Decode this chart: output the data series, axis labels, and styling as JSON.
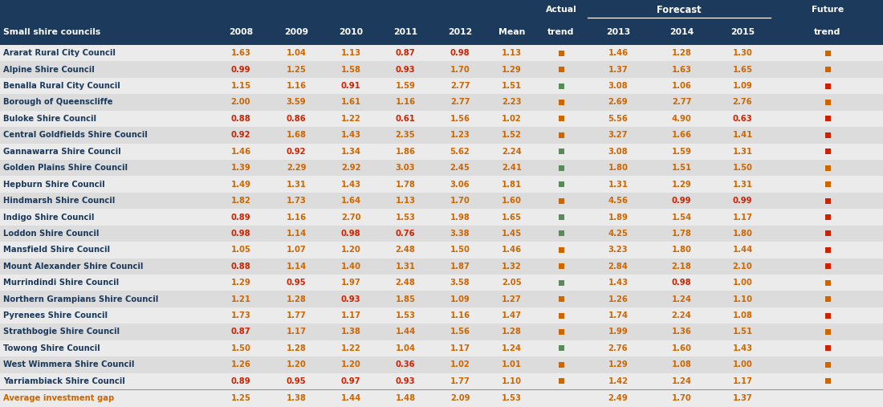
{
  "header_bg": "#1b3a5c",
  "alt_row_bg": "#dcdcdc",
  "white_row_bg": "#ebebeb",
  "footer_bg": "#ebebeb",
  "rows": [
    {
      "name": "Ararat Rural City Council",
      "vals": [
        1.63,
        1.04,
        1.13,
        0.87,
        0.98,
        1.13
      ],
      "actual_sq": "orange",
      "f2013": 1.46,
      "f2014": 1.28,
      "f2015": 1.3,
      "future_sq": "orange"
    },
    {
      "name": "Alpine Shire Council",
      "vals": [
        0.99,
        1.25,
        1.58,
        0.93,
        1.7,
        1.29
      ],
      "actual_sq": "orange",
      "f2013": 1.37,
      "f2014": 1.63,
      "f2015": 1.65,
      "future_sq": "orange"
    },
    {
      "name": "Benalla Rural City Council",
      "vals": [
        1.15,
        1.16,
        0.91,
        1.59,
        2.77,
        1.51
      ],
      "actual_sq": "green",
      "f2013": 3.08,
      "f2014": 1.06,
      "f2015": 1.09,
      "future_sq": "red"
    },
    {
      "name": "Borough of Queenscliffe",
      "vals": [
        2.0,
        3.59,
        1.61,
        1.16,
        2.77,
        2.23
      ],
      "actual_sq": "orange",
      "f2013": 2.69,
      "f2014": 2.77,
      "f2015": 2.76,
      "future_sq": "orange"
    },
    {
      "name": "Buloke Shire Council",
      "vals": [
        0.88,
        0.86,
        1.22,
        0.61,
        1.56,
        1.02
      ],
      "actual_sq": "orange",
      "f2013": 5.56,
      "f2014": 4.9,
      "f2015": 0.63,
      "future_sq": "red"
    },
    {
      "name": "Central Goldfields Shire Council",
      "vals": [
        0.92,
        1.68,
        1.43,
        2.35,
        1.23,
        1.52
      ],
      "actual_sq": "orange",
      "f2013": 3.27,
      "f2014": 1.66,
      "f2015": 1.41,
      "future_sq": "red"
    },
    {
      "name": "Gannawarra Shire Council",
      "vals": [
        1.46,
        0.92,
        1.34,
        1.86,
        5.62,
        2.24
      ],
      "actual_sq": "green",
      "f2013": 3.08,
      "f2014": 1.59,
      "f2015": 1.31,
      "future_sq": "red"
    },
    {
      "name": "Golden Plains Shire Council",
      "vals": [
        1.39,
        2.29,
        2.92,
        3.03,
        2.45,
        2.41
      ],
      "actual_sq": "green",
      "f2013": 1.8,
      "f2014": 1.51,
      "f2015": 1.5,
      "future_sq": "orange"
    },
    {
      "name": "Hepburn Shire Council",
      "vals": [
        1.49,
        1.31,
        1.43,
        1.78,
        3.06,
        1.81
      ],
      "actual_sq": "green",
      "f2013": 1.31,
      "f2014": 1.29,
      "f2015": 1.31,
      "future_sq": "orange"
    },
    {
      "name": "Hindmarsh Shire Council",
      "vals": [
        1.82,
        1.73,
        1.64,
        1.13,
        1.7,
        1.6
      ],
      "actual_sq": "orange",
      "f2013": 4.56,
      "f2014": 0.99,
      "f2015": 0.99,
      "future_sq": "red"
    },
    {
      "name": "Indigo Shire Council",
      "vals": [
        0.89,
        1.16,
        2.7,
        1.53,
        1.98,
        1.65
      ],
      "actual_sq": "green",
      "f2013": 1.89,
      "f2014": 1.54,
      "f2015": 1.17,
      "future_sq": "red"
    },
    {
      "name": "Loddon Shire Council",
      "vals": [
        0.98,
        1.14,
        0.98,
        0.76,
        3.38,
        1.45
      ],
      "actual_sq": "green",
      "f2013": 4.25,
      "f2014": 1.78,
      "f2015": 1.8,
      "future_sq": "red"
    },
    {
      "name": "Mansfield Shire Council",
      "vals": [
        1.05,
        1.07,
        1.2,
        2.48,
        1.5,
        1.46
      ],
      "actual_sq": "orange",
      "f2013": 3.23,
      "f2014": 1.8,
      "f2015": 1.44,
      "future_sq": "red"
    },
    {
      "name": "Mount Alexander Shire Council",
      "vals": [
        0.88,
        1.14,
        1.4,
        1.31,
        1.87,
        1.32
      ],
      "actual_sq": "orange",
      "f2013": 2.84,
      "f2014": 2.18,
      "f2015": 2.1,
      "future_sq": "red"
    },
    {
      "name": "Murrindindi Shire Council",
      "vals": [
        1.29,
        0.95,
        1.97,
        2.48,
        3.58,
        2.05
      ],
      "actual_sq": "green",
      "f2013": 1.43,
      "f2014": 0.98,
      "f2015": 1.0,
      "future_sq": "orange"
    },
    {
      "name": "Northern Grampians Shire Council",
      "vals": [
        1.21,
        1.28,
        0.93,
        1.85,
        1.09,
        1.27
      ],
      "actual_sq": "orange",
      "f2013": 1.26,
      "f2014": 1.24,
      "f2015": 1.1,
      "future_sq": "orange"
    },
    {
      "name": "Pyrenees Shire Council",
      "vals": [
        1.73,
        1.77,
        1.17,
        1.53,
        1.16,
        1.47
      ],
      "actual_sq": "orange",
      "f2013": 1.74,
      "f2014": 2.24,
      "f2015": 1.08,
      "future_sq": "red"
    },
    {
      "name": "Strathbogie Shire Council",
      "vals": [
        0.87,
        1.17,
        1.38,
        1.44,
        1.56,
        1.28
      ],
      "actual_sq": "orange",
      "f2013": 1.99,
      "f2014": 1.36,
      "f2015": 1.51,
      "future_sq": "orange"
    },
    {
      "name": "Towong Shire Council",
      "vals": [
        1.5,
        1.28,
        1.22,
        1.04,
        1.17,
        1.24
      ],
      "actual_sq": "green",
      "f2013": 2.76,
      "f2014": 1.6,
      "f2015": 1.43,
      "future_sq": "red"
    },
    {
      "name": "West Wimmera Shire Council",
      "vals": [
        1.26,
        1.2,
        1.2,
        0.36,
        1.02,
        1.01
      ],
      "actual_sq": "orange",
      "f2013": 1.29,
      "f2014": 1.08,
      "f2015": 1.0,
      "future_sq": "orange"
    },
    {
      "name": "Yarriambiack Shire Council",
      "vals": [
        0.89,
        0.95,
        0.97,
        0.93,
        1.77,
        1.1
      ],
      "actual_sq": "orange",
      "f2013": 1.42,
      "f2014": 1.24,
      "f2015": 1.17,
      "future_sq": "orange"
    }
  ],
  "footer": {
    "name": "Average investment gap",
    "vals": [
      1.25,
      1.38,
      1.44,
      1.48,
      2.09,
      1.53
    ],
    "f2013": 2.49,
    "f2014": 1.7,
    "f2015": 1.37
  },
  "color_green": "#5a8a5a",
  "color_orange": "#cc6600",
  "color_red": "#cc2200",
  "name_color": "#1b3a5c",
  "footer_name_color": "#cc6600"
}
